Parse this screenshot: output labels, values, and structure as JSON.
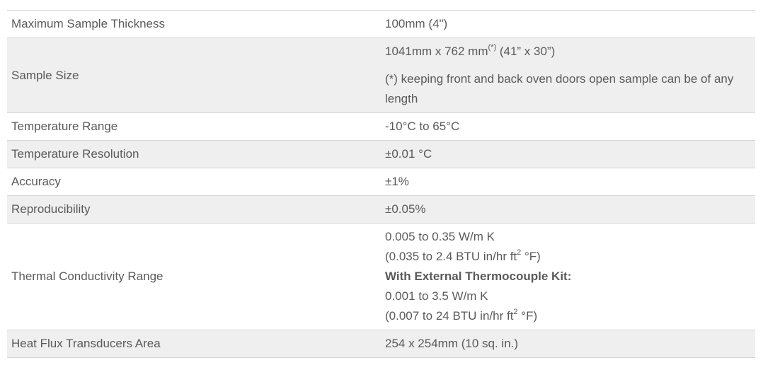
{
  "rows": [
    {
      "label": "Maximum Sample Thickness",
      "value": "100mm (4\")"
    },
    {
      "label": "Sample Size",
      "dim_main": "1041mm x 762 mm",
      "dim_mark": "(*)",
      "dim_inches": " (41” x 30”)",
      "note": "(*) keeping front and back oven doors open sample can be of any length"
    },
    {
      "label": "Temperature Range",
      "value": "-10°C to 65°C"
    },
    {
      "label": "Temperature Resolution",
      "value": "±0.01 °C"
    },
    {
      "label": "Accuracy",
      "value": "±1%"
    },
    {
      "label": "Reproducibility",
      "value": "±0.05%"
    },
    {
      "label": "Thermal Conductivity Range",
      "line1": "0.005 to 0.35 W/m K",
      "line2_pre": "(0.035 to 2.4 BTU in/hr ft",
      "line2_sup": "2",
      "line2_post": " °F)",
      "kit_heading": "With External Thermocouple Kit:",
      "line4": "0.001 to 3.5 W/m K",
      "line5_pre": "(0.007 to 24 BTU in/hr ft",
      "line5_sup": "2",
      "line5_post": " °F)"
    },
    {
      "label": "Heat Flux Transducers Area",
      "value": "254 x 254mm (10 sq. in.)"
    }
  ]
}
